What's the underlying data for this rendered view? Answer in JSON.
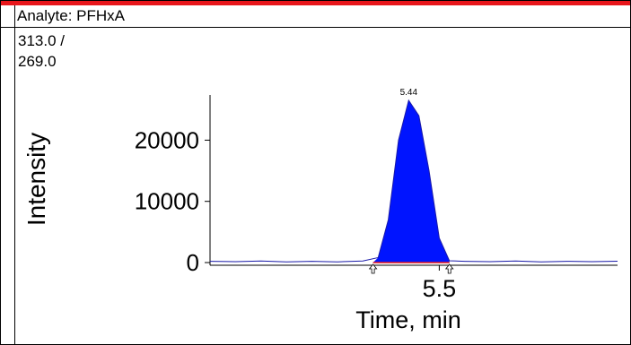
{
  "header": {
    "analyte_label": "Analyte: PFHxA"
  },
  "transition": {
    "line1": "313.0 /",
    "line2": "269.0"
  },
  "chart_data": {
    "type": "line",
    "ylabel": "Intensity",
    "xlabel": "Time, min",
    "x_ticks": [
      "5.5"
    ],
    "y_ticks": [
      "0",
      "10000",
      "20000"
    ],
    "peak": {
      "rt": 5.44,
      "label": "5.44",
      "height": 26500,
      "start": 5.37,
      "end": 5.52
    },
    "baseline_color": "#e8161b",
    "trace_color": "#1a1aa8",
    "fill_color": "#0014ff",
    "x": [
      5.05,
      5.1,
      5.15,
      5.2,
      5.25,
      5.3,
      5.35,
      5.38,
      5.4,
      5.42,
      5.44,
      5.46,
      5.48,
      5.5,
      5.52,
      5.55,
      5.6,
      5.65,
      5.7,
      5.75,
      5.8,
      5.85
    ],
    "y": [
      200,
      150,
      250,
      100,
      200,
      120,
      250,
      800,
      7000,
      20000,
      26500,
      24000,
      15000,
      4000,
      300,
      200,
      150,
      250,
      120,
      200,
      150,
      220
    ],
    "xlim": [
      5.05,
      5.85
    ],
    "ylim": [
      -1000,
      28000
    ]
  }
}
